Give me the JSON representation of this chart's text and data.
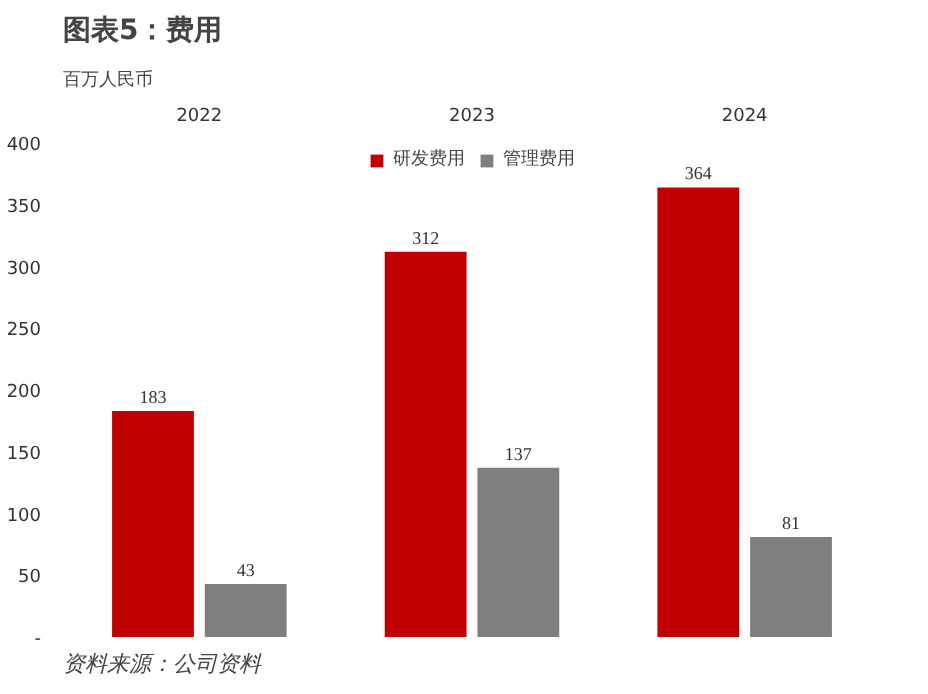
{
  "chart_data": {
    "type": "bar",
    "title": "图表5：费用",
    "ylabel": "百万人民币",
    "categories": [
      "2022",
      "2023",
      "2024"
    ],
    "series": [
      {
        "name": "研发费用",
        "color": "#c00000",
        "values": [
          183,
          312,
          364
        ]
      },
      {
        "name": "管理费用",
        "color": "#7f7f7f",
        "values": [
          43,
          137,
          81
        ]
      }
    ],
    "ylim": [
      0,
      400
    ],
    "yticks": [
      {
        "value": 0,
        "label": "-"
      },
      50,
      100,
      150,
      200,
      250,
      300,
      350,
      400
    ],
    "data_labels": true,
    "grid": false,
    "legend": "top",
    "annotations": [
      "资料来源：公司资料"
    ]
  }
}
